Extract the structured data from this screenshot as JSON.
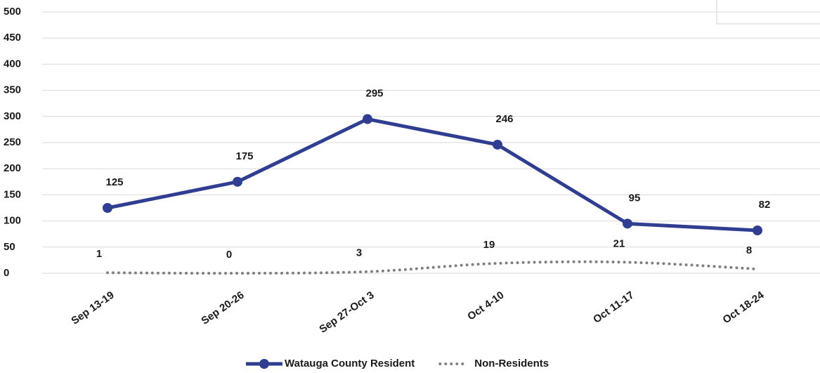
{
  "chart_data": {
    "type": "line",
    "categories": [
      "Sep 13-19",
      "Sep 20-26",
      "Sep 27-Oct 3",
      "Oct 4-10",
      "Oct 11-17",
      "Oct 18-24"
    ],
    "series": [
      {
        "name": "Watauga County Resident",
        "color": "#2f3e91",
        "values": [
          125,
          175,
          295,
          246,
          95,
          82
        ]
      },
      {
        "name": "Non-Residents",
        "color": "#7f7f7f",
        "dotted": true,
        "values": [
          1,
          0,
          3,
          19,
          21,
          8
        ]
      }
    ],
    "ylim": [
      0,
      500
    ],
    "yticks": [
      0,
      50,
      100,
      150,
      200,
      250,
      300,
      350,
      400,
      450,
      500
    ],
    "grid": true
  }
}
